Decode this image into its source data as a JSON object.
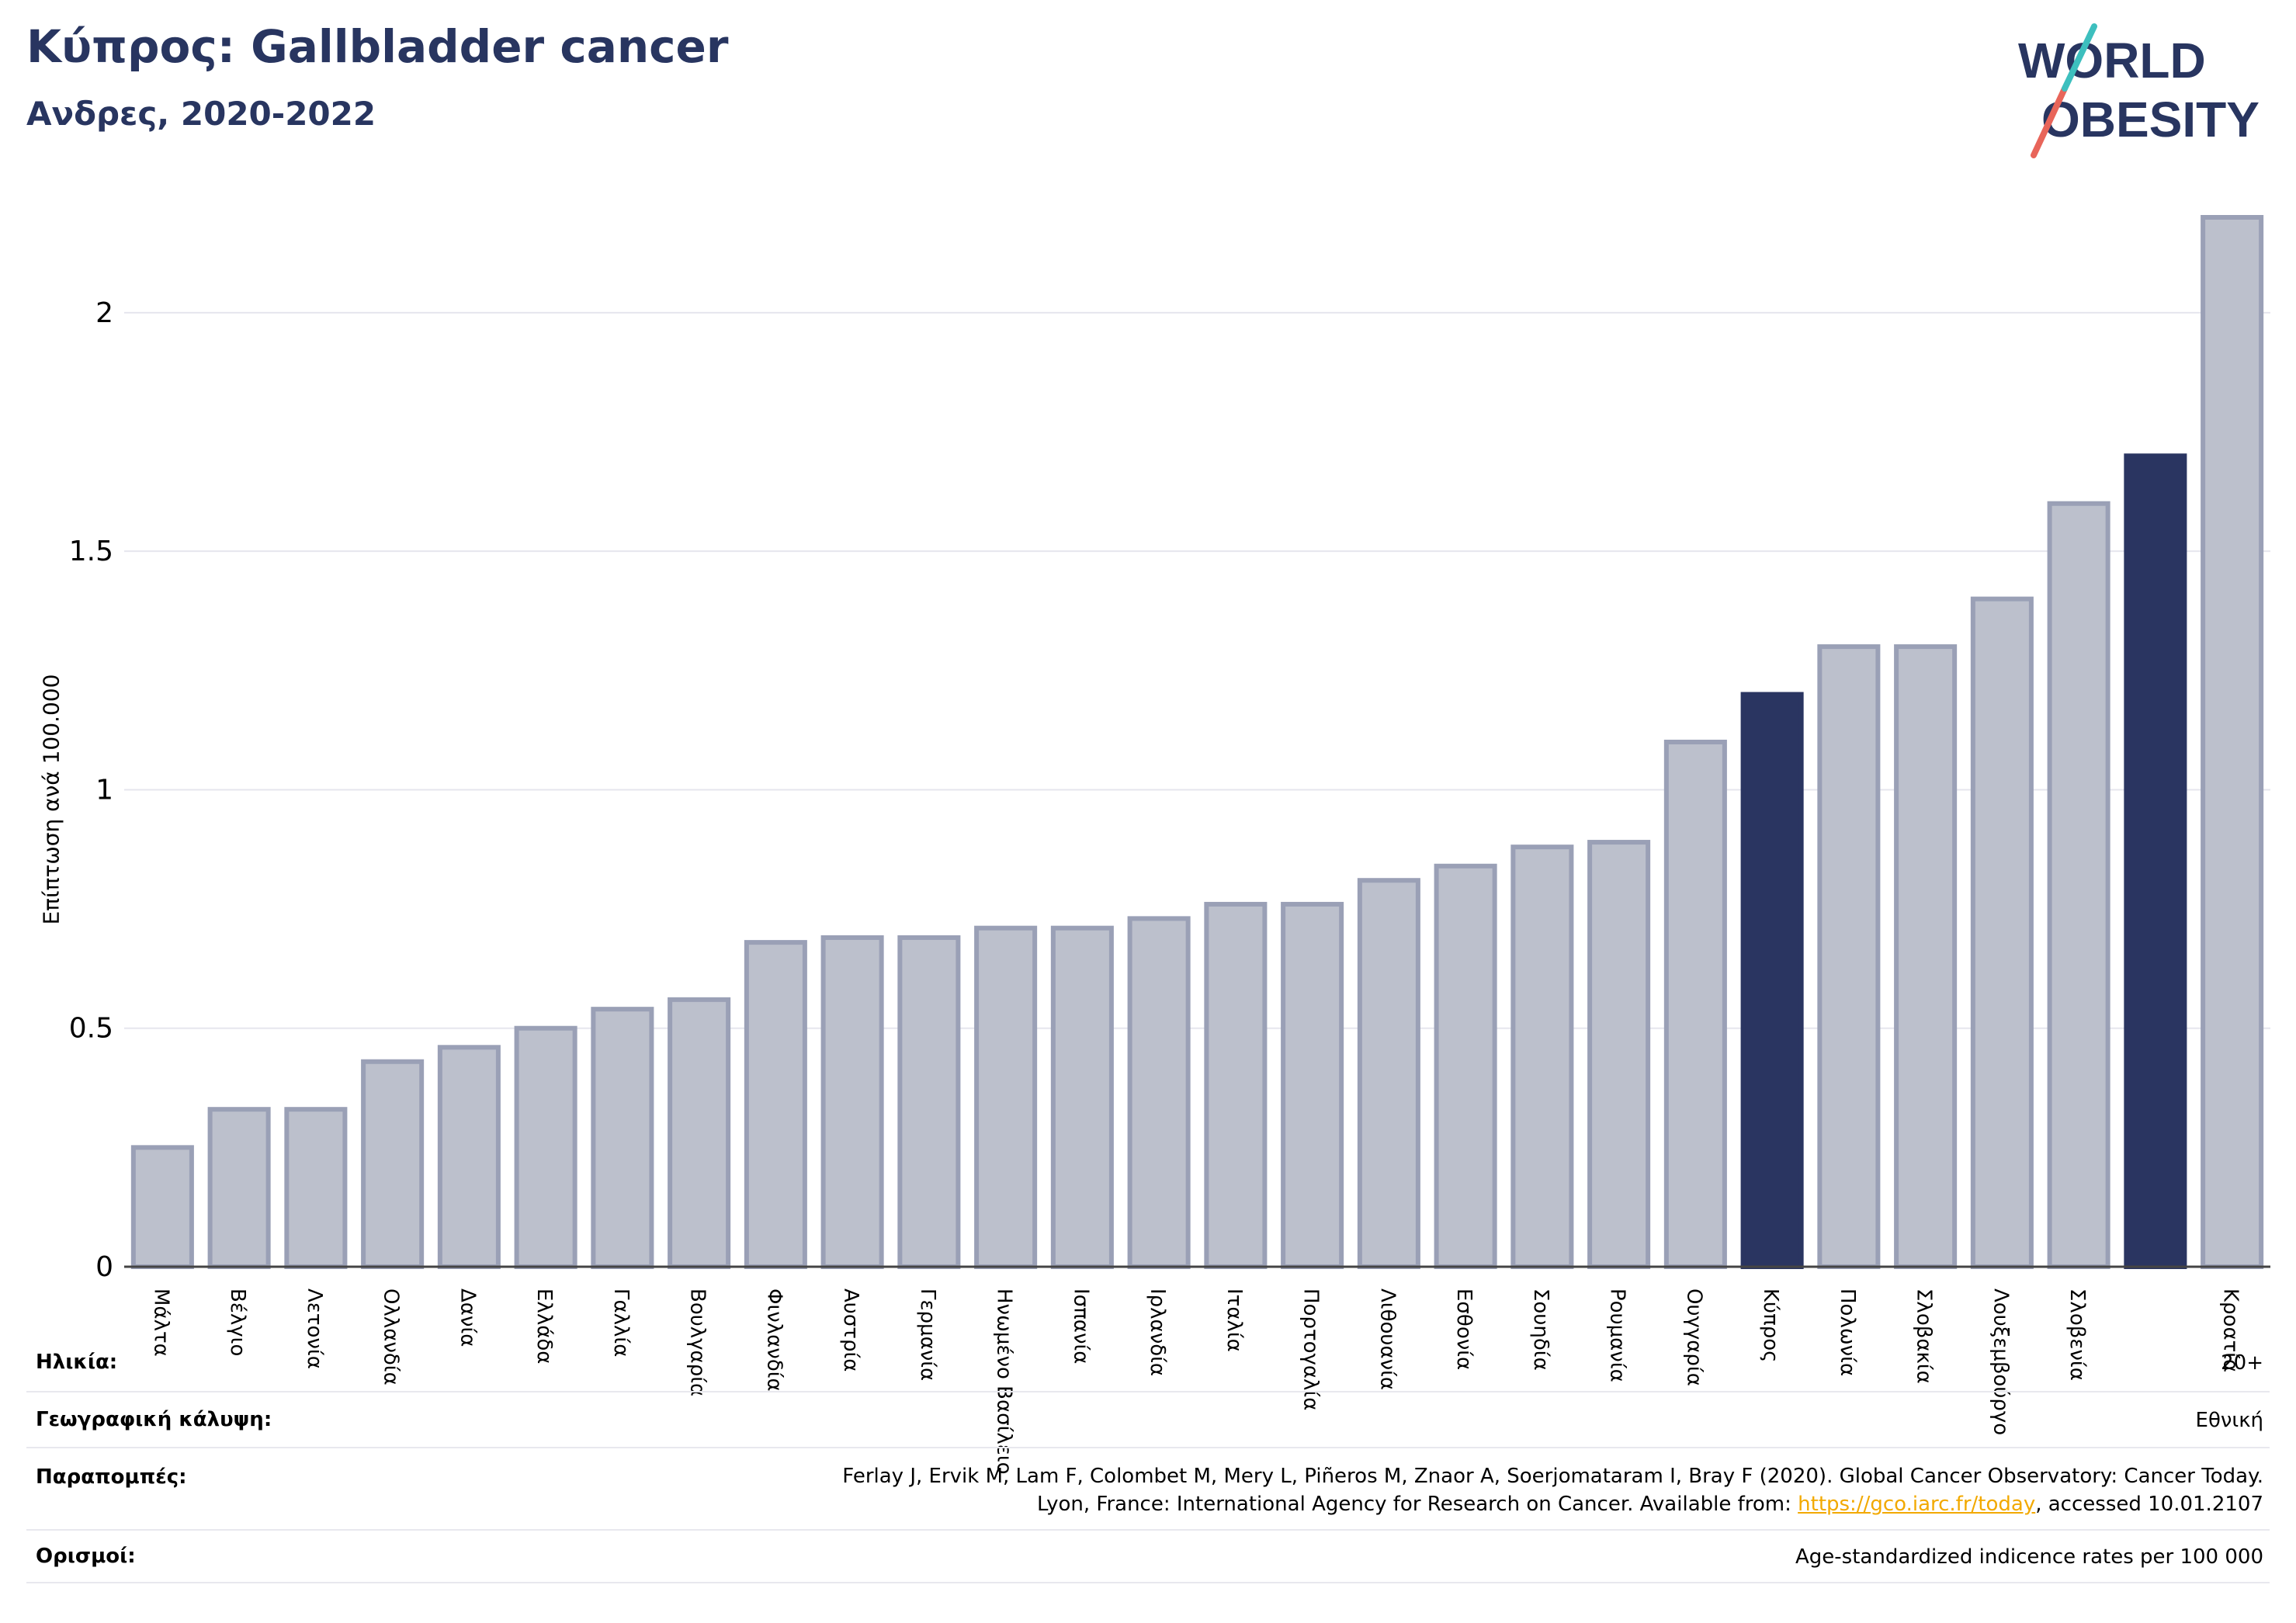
{
  "header": {
    "title": "Κύπρος: Gallbladder cancer",
    "subtitle": "Ανδρες, 2020-2022"
  },
  "logo": {
    "line1": "WORLD",
    "line2": "OBESITY"
  },
  "colors": {
    "bar": "#bcc0cc",
    "bar_stroke": "#9aa0b6",
    "highlight": "#2a3561",
    "grid": "#e6e6ee",
    "axis": "#444444",
    "title": "#283560"
  },
  "chart_data": {
    "type": "bar",
    "ylabel": "Επίπτωση ανά 100.000",
    "ylim": [
      0,
      2.2
    ],
    "yticks": [
      "0",
      "0.5",
      "1",
      "1.5",
      "2"
    ],
    "ytick_values": [
      0,
      0.5,
      1,
      1.5,
      2
    ],
    "grid": true,
    "categories": [
      "Μάλτα",
      "Βέλγιο",
      "Λετονία",
      "Ολλανδία",
      "Δανία",
      "Ελλάδα",
      "Γαλλία",
      "Βουλγαρία",
      "Φινλανδία",
      "Αυστρία",
      "Γερμανία",
      "Ηνωμένο Βασίλειο",
      "Ισπανία",
      "Ιρλανδία",
      "Ιταλία",
      "Πορτογαλία",
      "Λιθουανία",
      "Εσθονία",
      "Σουηδία",
      "Ρουμανία",
      "Ουγγαρία",
      "Κύπρος",
      "Πολωνία",
      "Σλοβακία",
      "Λουξεμβούργο",
      "Σλοβενία",
      "",
      "Κροατία"
    ],
    "values": [
      0.25,
      0.33,
      0.33,
      0.43,
      0.46,
      0.5,
      0.54,
      0.56,
      0.68,
      0.69,
      0.69,
      0.71,
      0.71,
      0.73,
      0.76,
      0.76,
      0.81,
      0.84,
      0.88,
      0.89,
      1.1,
      1.2,
      1.3,
      1.3,
      1.4,
      1.6,
      1.7,
      2.2
    ],
    "highlighted": [
      21,
      26
    ]
  },
  "info": {
    "age_label": "Ηλικία:",
    "age_value": "20+",
    "coverage_label": "Γεωγραφική κάλυψη:",
    "coverage_value": "Εθνική",
    "refs_label": "Παραπομπές:",
    "refs_line1": "Ferlay J, Ervik M, Lam F, Colombet M, Mery L, Piñeros M, Znaor A, Soerjomataram I, Bray F (2020). Global Cancer Observatory: Cancer Today.",
    "refs_line2_pre": "Lyon, France: International Agency for Research on Cancer. Available from: ",
    "refs_link": "https://gco.iarc.fr/today",
    "refs_line2_post": ", accessed 10.01.2107",
    "def_label": "Ορισμοί:",
    "def_value": "Age-standardized indicence rates per 100 000"
  }
}
